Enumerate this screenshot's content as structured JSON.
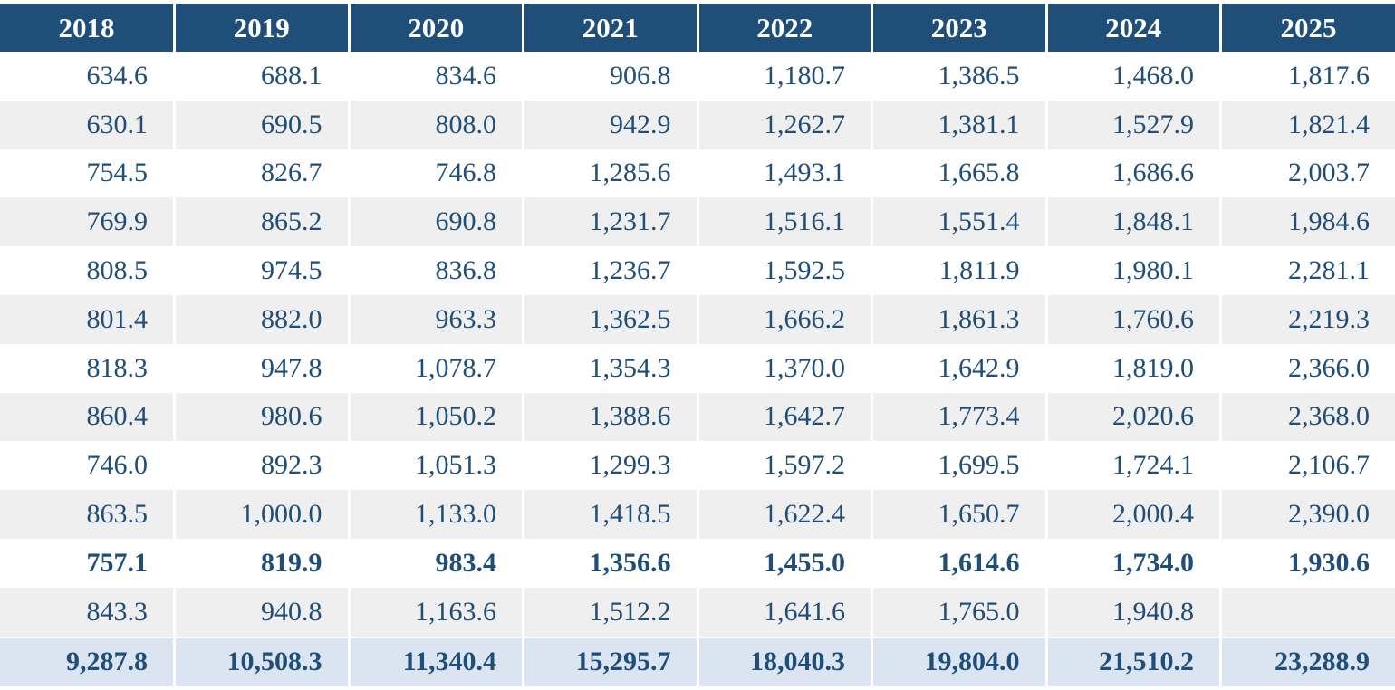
{
  "table": {
    "columns": [
      "2018",
      "2019",
      "2020",
      "2021",
      "2022",
      "2023",
      "2024",
      "2025"
    ],
    "rows": [
      {
        "bold": false,
        "values": [
          "634.6",
          "688.1",
          "834.6",
          "906.8",
          "1,180.7",
          "1,386.5",
          "1,468.0",
          "1,817.6"
        ]
      },
      {
        "bold": false,
        "values": [
          "630.1",
          "690.5",
          "808.0",
          "942.9",
          "1,262.7",
          "1,381.1",
          "1,527.9",
          "1,821.4"
        ]
      },
      {
        "bold": false,
        "values": [
          "754.5",
          "826.7",
          "746.8",
          "1,285.6",
          "1,493.1",
          "1,665.8",
          "1,686.6",
          "2,003.7"
        ]
      },
      {
        "bold": false,
        "values": [
          "769.9",
          "865.2",
          "690.8",
          "1,231.7",
          "1,516.1",
          "1,551.4",
          "1,848.1",
          "1,984.6"
        ]
      },
      {
        "bold": false,
        "values": [
          "808.5",
          "974.5",
          "836.8",
          "1,236.7",
          "1,592.5",
          "1,811.9",
          "1,980.1",
          "2,281.1"
        ]
      },
      {
        "bold": false,
        "values": [
          "801.4",
          "882.0",
          "963.3",
          "1,362.5",
          "1,666.2",
          "1,861.3",
          "1,760.6",
          "2,219.3"
        ]
      },
      {
        "bold": false,
        "values": [
          "818.3",
          "947.8",
          "1,078.7",
          "1,354.3",
          "1,370.0",
          "1,642.9",
          "1,819.0",
          "2,366.0"
        ]
      },
      {
        "bold": false,
        "values": [
          "860.4",
          "980.6",
          "1,050.2",
          "1,388.6",
          "1,642.7",
          "1,773.4",
          "2,020.6",
          "2,368.0"
        ]
      },
      {
        "bold": false,
        "values": [
          "746.0",
          "892.3",
          "1,051.3",
          "1,299.3",
          "1,597.2",
          "1,699.5",
          "1,724.1",
          "2,106.7"
        ]
      },
      {
        "bold": false,
        "values": [
          "863.5",
          "1,000.0",
          "1,133.0",
          "1,418.5",
          "1,622.4",
          "1,650.7",
          "2,000.4",
          "2,390.0"
        ]
      },
      {
        "bold": true,
        "values": [
          "757.1",
          "819.9",
          "983.4",
          "1,356.6",
          "1,455.0",
          "1,614.6",
          "1,734.0",
          "1,930.6"
        ]
      },
      {
        "bold": false,
        "values": [
          "843.3",
          "940.8",
          "1,163.6",
          "1,512.2",
          "1,641.6",
          "1,765.0",
          "1,940.8",
          ""
        ]
      }
    ],
    "total_row": {
      "values": [
        "9,287.8",
        "10,508.3",
        "11,340.4",
        "15,295.7",
        "18,040.3",
        "19,804.0",
        "21,510.2",
        "23,288.9"
      ]
    }
  },
  "colors": {
    "header_bg": "#1f4e79",
    "header_text": "#ffffff",
    "cell_text": "#1f4e79",
    "stripe_bg": "#efefef",
    "total_bg": "#dbe5f1"
  }
}
